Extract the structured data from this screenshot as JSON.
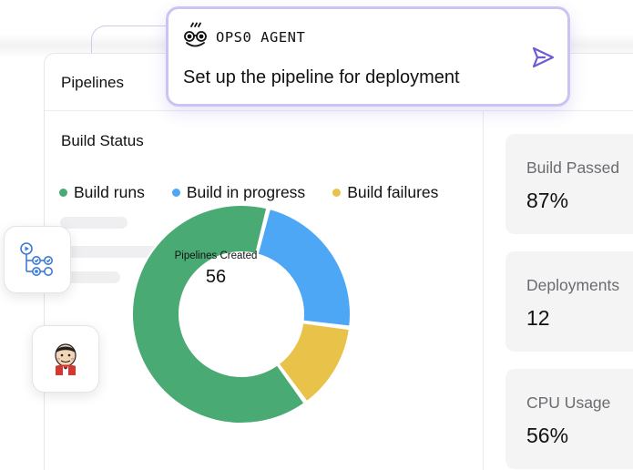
{
  "agent": {
    "title": "OPS0 AGENT",
    "prompt": "Set up the pipeline for deployment",
    "logo_icon": "ops0-logo-icon",
    "send_icon": "send-arrow-icon"
  },
  "dashboard": {
    "header_title": "Pipelines",
    "section_title": "Build Status",
    "legend": [
      {
        "label": "Build runs",
        "color": "#4aaa73"
      },
      {
        "label": "Build in progress",
        "color": "#4ea7f5"
      },
      {
        "label": "Build failures",
        "color": "#e9c24a"
      }
    ],
    "donut": {
      "center_label": "Pipelines Created",
      "center_value": "56"
    },
    "stats": [
      {
        "label": "Build Passed",
        "value": "87%"
      },
      {
        "label": "Deployments",
        "value": "12"
      },
      {
        "label": "CPU Usage",
        "value": "56%"
      }
    ]
  },
  "chart_data": {
    "type": "pie",
    "categories": [
      "Build runs",
      "Build in progress",
      "Build failures"
    ],
    "values": [
      64,
      23,
      13
    ],
    "colors": [
      "#4aaa73",
      "#4ea7f5",
      "#e9c24a"
    ],
    "donut": true,
    "center_label": "Pipelines Created",
    "center_value": "56"
  },
  "floating_icons": [
    "pipeline-flow-icon",
    "jenkins-icon"
  ],
  "colors": {
    "accent": "#6b5cd6",
    "agent_border": "#c9c4f2",
    "card_bg": "#f4f4f5"
  }
}
